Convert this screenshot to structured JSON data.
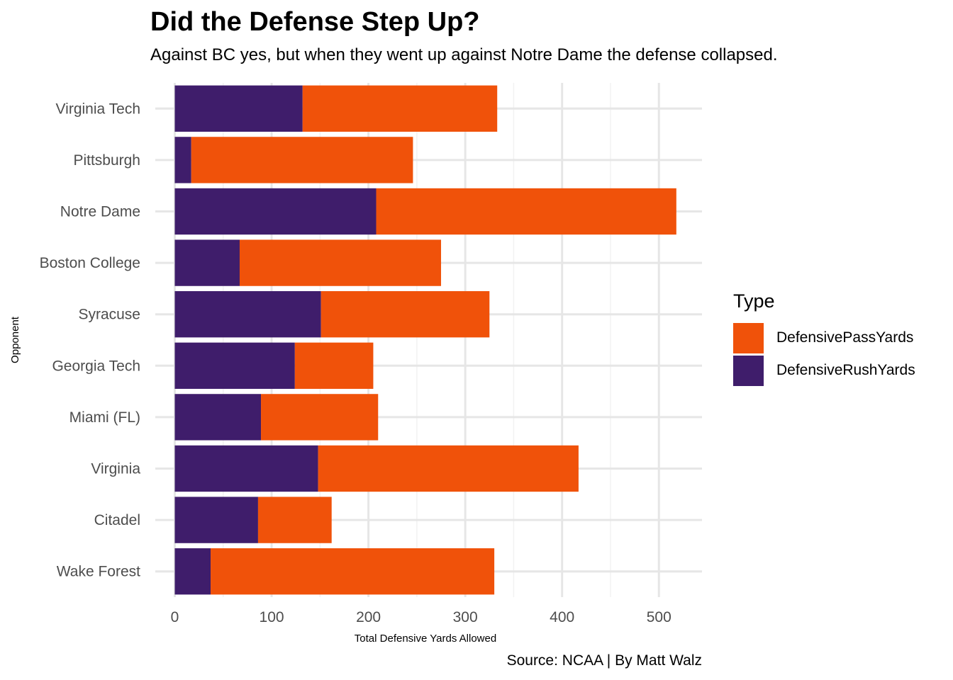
{
  "title": "Did the Defense Step Up?",
  "subtitle": "Against BC yes, but when they went up against Notre Dame the defense collapsed.",
  "caption": "Source: NCAA | By Matt Walz",
  "chart_data": {
    "type": "bar",
    "orientation": "horizontal",
    "stacked": true,
    "xlabel": "Total Defensive Yards Allowed",
    "ylabel": "Opponent",
    "xlim": [
      0,
      545
    ],
    "xticks": [
      0,
      100,
      200,
      300,
      400,
      500
    ],
    "grid": true,
    "legend_title": "Type",
    "legend_position": "right",
    "categories": [
      "Virginia Tech",
      "Pittsburgh",
      "Notre Dame",
      "Boston College",
      "Syracuse",
      "Georgia Tech",
      "Miami (FL)",
      "Virginia",
      "Citadel",
      "Wake Forest"
    ],
    "series": [
      {
        "name": "DefensiveRushYards",
        "color": "#3f1d6b",
        "values": [
          132,
          17,
          208,
          67,
          151,
          124,
          89,
          148,
          86,
          37
        ]
      },
      {
        "name": "DefensivePassYards",
        "color": "#f0520a",
        "values": [
          201,
          229,
          310,
          208,
          174,
          81,
          121,
          269,
          76,
          293
        ]
      }
    ],
    "legend_order": [
      "DefensivePassYards",
      "DefensiveRushYards"
    ]
  }
}
